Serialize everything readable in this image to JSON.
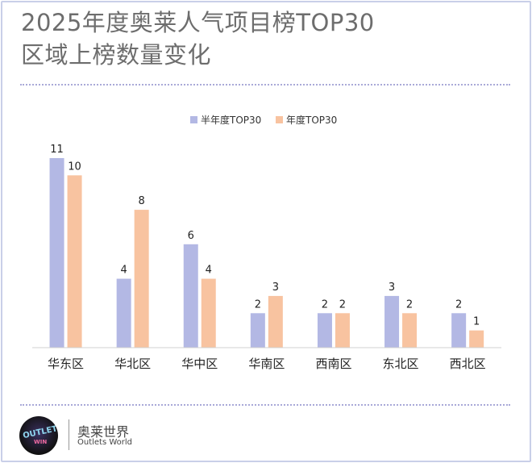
{
  "header": {
    "title_line1": "2025年度奥莱人气项目榜TOP30",
    "title_line2": "区域上榜数量变化"
  },
  "footer": {
    "brand_cn": "奥莱世界",
    "brand_en": "Outlets World",
    "logo_text": "OUTLETS WIN"
  },
  "chart_data": {
    "type": "bar",
    "title": "2025年度奥莱人气项目榜TOP30 区域上榜数量变化",
    "categories": [
      "华东区",
      "华北区",
      "华中区",
      "华南区",
      "西南区",
      "东北区",
      "西北区"
    ],
    "series": [
      {
        "name": "半年度TOP30",
        "values": [
          11,
          4,
          6,
          2,
          2,
          3,
          2
        ],
        "color": "#b3b8e4"
      },
      {
        "name": "年度TOP30",
        "values": [
          10,
          8,
          4,
          3,
          2,
          2,
          1
        ],
        "color": "#f8c3a0"
      }
    ],
    "ylim": [
      0,
      11
    ],
    "grid": false,
    "legend": "top-center",
    "data_labels": true
  }
}
